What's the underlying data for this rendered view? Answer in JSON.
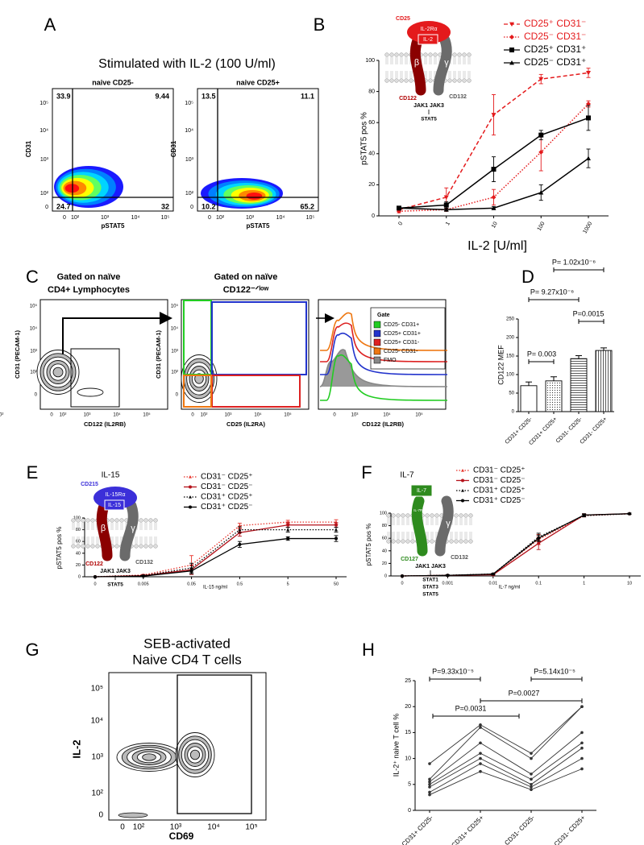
{
  "panel_labels": [
    "A",
    "B",
    "C",
    "D",
    "E",
    "F",
    "G",
    "H"
  ],
  "flow": {
    "A": {
      "title": "Stimulated with IL-2 (100 U/ml)",
      "x_label": "pSTAT5",
      "y_label": "CD31",
      "ticks": [
        "0",
        "10²",
        "10³",
        "10⁴",
        "10⁵"
      ],
      "plots": [
        {
          "title": "naive CD25-",
          "quadrants": [
            33.9,
            9.44,
            24.7,
            32
          ]
        },
        {
          "title": "naive CD25+",
          "quadrants": [
            13.5,
            11.1,
            10.2,
            65.2
          ]
        }
      ]
    },
    "C": {
      "titles": [
        [
          "Gated on naïve",
          "CD4+ Lymphocytes"
        ],
        [
          "Gated on naïve",
          "CD122⁻ᐟˡᵒʷ"
        ]
      ],
      "y_label": "CD31 (PECAM-1)",
      "x_labels": [
        "CD122 (IL2RB)",
        "CD25 (IL2RA)",
        "CD122 (IL2RB)"
      ],
      "ticks": [
        "0",
        "10²",
        "10³",
        "10⁴",
        "10⁵"
      ],
      "legend": {
        "title": "Gate",
        "entries": [
          {
            "name": "CD25- CD31+",
            "color": "#22cc22"
          },
          {
            "name": "CD25+ CD31+",
            "color": "#2233cc"
          },
          {
            "name": "CD25+ CD31-",
            "color": "#dd2222"
          },
          {
            "name": "CD25- CD31-",
            "color": "#ee7711"
          },
          {
            "name": "FMO",
            "color": "#888888"
          }
        ]
      }
    },
    "G": {
      "title": [
        "SEB-activated",
        "Naive CD4 T cells"
      ],
      "y_label": "IL-2",
      "x_label": "CD69",
      "ticks": [
        "0",
        "10²",
        "10³",
        "10⁴",
        "10⁵"
      ]
    }
  },
  "diagrams": {
    "B": {
      "receptor": "CD25",
      "alpha": "IL-2Rα",
      "cytokine": "IL-2",
      "beta": "β",
      "gamma": "γ",
      "chain_name": "CD122",
      "gamma_name": "CD132",
      "jak": "JAK1 JAK3",
      "stats": [
        "STAT5"
      ]
    },
    "E": {
      "receptor": "CD215",
      "alpha": "IL-15Rα",
      "cytokine": "IL-15",
      "beta": "β",
      "gamma": "γ",
      "chain_name": "CD122",
      "gamma_name": "CD132",
      "jak": "JAK1 JAK3",
      "stats": [
        "STAT5"
      ]
    },
    "F": {
      "alpha": "IL-7Rα",
      "cytokine": "IL-7",
      "gamma": "γ",
      "chain_name": "CD127",
      "gamma_name": "CD132",
      "jak": "JAK1 JAK3",
      "stats": [
        "STAT1",
        "STAT3",
        "STAT5"
      ]
    }
  },
  "chart_data": [
    {
      "type": "line",
      "x_label": "IL-2 [U/ml]",
      "y_label": "pSTAT5 pos %",
      "categories": [
        "0",
        "1",
        "10",
        "100",
        "1000"
      ],
      "ylim": [
        0,
        100
      ],
      "yticks": [
        0,
        20,
        40,
        60,
        80,
        100
      ],
      "series": [
        {
          "name": "CD25⁺ CD31⁻",
          "color": "#e41a1c",
          "dash": "dashed",
          "marker": "triangle-down",
          "values": [
            4,
            12,
            65,
            88,
            92
          ],
          "errors": [
            1,
            6,
            13,
            3,
            3
          ]
        },
        {
          "name": "CD25⁻ CD31⁻",
          "color": "#e41a1c",
          "dash": "dotted",
          "marker": "diamond",
          "values": [
            3,
            4,
            12,
            41,
            72
          ],
          "errors": [
            1,
            1,
            5,
            12,
            2
          ]
        },
        {
          "name": "CD25⁺ CD31⁺",
          "color": "#000000",
          "dash": "solid",
          "marker": "square",
          "values": [
            5,
            7,
            30,
            52,
            63
          ],
          "errors": [
            1,
            2,
            8,
            3,
            8
          ]
        },
        {
          "name": "CD25⁻ CD31⁺",
          "color": "#000000",
          "dash": "solid",
          "marker": "triangle",
          "values": [
            5,
            4,
            5,
            15,
            37
          ],
          "errors": [
            1,
            1,
            1,
            5,
            6
          ]
        }
      ]
    },
    {
      "type": "bar",
      "y_label": "CD122 MEF",
      "categories": [
        "CD31+ CD25-",
        "CD31+ CD25+",
        "CD31- CD25-",
        "CD31- CD25+"
      ],
      "values": [
        70,
        83,
        143,
        165
      ],
      "errors": [
        10,
        11,
        8,
        7
      ],
      "color": "#000000",
      "hatch": [
        "none",
        "dots",
        "horizontal",
        "vertical"
      ],
      "ylim": [
        0,
        250
      ],
      "yticks": [
        0,
        50,
        100,
        150,
        200,
        250
      ],
      "annotations": [
        "P= 1.02x10⁻⁶",
        "P= 9.27x10⁻⁶",
        "P=0.0015",
        "P= 0.003"
      ]
    },
    {
      "type": "line",
      "title": "IL-15",
      "x_label": "IL-15 ng/ml",
      "y_label": "pSTAT5 pos %",
      "categories": [
        "0",
        "0.005",
        "0.05",
        "0.5",
        "5",
        "50"
      ],
      "ylim": [
        0,
        100
      ],
      "yticks": [
        0,
        20,
        40,
        60,
        80,
        100
      ],
      "series": [
        {
          "name": "CD31⁻ CD25⁺",
          "color": "#e8332a",
          "dash": "dotted",
          "marker": "triangle",
          "values": [
            0,
            3,
            20,
            87,
            93,
            93
          ],
          "errors": [
            0,
            1,
            16,
            4,
            3,
            4
          ]
        },
        {
          "name": "CD31⁻ CD25⁻",
          "color": "#b5121b",
          "dash": "solid",
          "marker": "circle",
          "values": [
            0,
            2,
            12,
            75,
            88,
            88
          ],
          "errors": [
            0,
            1,
            8,
            6,
            4,
            4
          ]
        },
        {
          "name": "CD31⁺ CD25⁺",
          "color": "#000000",
          "dash": "dotted",
          "marker": "triangle",
          "values": [
            0,
            2,
            15,
            80,
            80,
            80
          ],
          "errors": [
            0,
            1,
            8,
            5,
            4,
            4
          ]
        },
        {
          "name": "CD31⁺ CD25⁻",
          "color": "#000000",
          "dash": "solid",
          "marker": "circle",
          "values": [
            0,
            1,
            10,
            55,
            65,
            65
          ],
          "errors": [
            0,
            1,
            5,
            5,
            3,
            5
          ]
        }
      ]
    },
    {
      "type": "line",
      "title": "IL-7",
      "x_label": "IL-7 ng/ml",
      "y_label": "pSTAT5 pos %",
      "categories": [
        "0",
        "0.001",
        "0.01",
        "0.1",
        "1",
        "10"
      ],
      "ylim": [
        0,
        100
      ],
      "yticks": [
        0,
        20,
        40,
        60,
        80,
        100
      ],
      "series": [
        {
          "name": "CD31⁻ CD25⁺",
          "color": "#e8332a",
          "dash": "dotted",
          "marker": "triangle",
          "values": [
            0,
            1,
            3,
            58,
            96,
            99
          ],
          "errors": [
            0,
            1,
            1,
            8,
            2,
            1
          ]
        },
        {
          "name": "CD31⁻ CD25⁻",
          "color": "#b5121b",
          "dash": "solid",
          "marker": "circle",
          "values": [
            0,
            1,
            2,
            52,
            97,
            99
          ],
          "errors": [
            0,
            1,
            1,
            10,
            2,
            1
          ]
        },
        {
          "name": "CD31⁺ CD25⁺",
          "color": "#000000",
          "dash": "dotted",
          "marker": "triangle",
          "values": [
            0,
            1,
            3,
            62,
            96,
            99
          ],
          "errors": [
            0,
            1,
            1,
            6,
            2,
            1
          ]
        },
        {
          "name": "CD31⁺ CD25⁻",
          "color": "#000000",
          "dash": "solid",
          "marker": "circle",
          "values": [
            0,
            1,
            3,
            60,
            97,
            99
          ],
          "errors": [
            0,
            1,
            1,
            5,
            2,
            1
          ]
        }
      ]
    },
    {
      "type": "line",
      "y_label": "IL-2⁺ naive  T cell %",
      "categories": [
        "CD31+ CD25-",
        "CD31+ CD25+",
        "CD31- CD25-",
        "CD31- CD25+"
      ],
      "ylim": [
        0,
        25
      ],
      "yticks": [
        0,
        5,
        10,
        15,
        20,
        25
      ],
      "series": [
        {
          "color": "#333333",
          "dash": "solid",
          "marker": "circle",
          "values": [
            9,
            16.5,
            11,
            20
          ]
        },
        {
          "color": "#333333",
          "dash": "solid",
          "marker": "circle",
          "values": [
            6,
            16,
            10,
            20
          ]
        },
        {
          "color": "#333333",
          "dash": "solid",
          "marker": "circle",
          "values": [
            5.5,
            13,
            7,
            15
          ]
        },
        {
          "color": "#333333",
          "dash": "solid",
          "marker": "circle",
          "values": [
            5,
            11,
            6,
            13
          ]
        },
        {
          "color": "#333333",
          "dash": "solid",
          "marker": "circle",
          "values": [
            4.5,
            10,
            5,
            12
          ]
        },
        {
          "color": "#333333",
          "dash": "solid",
          "marker": "circle",
          "values": [
            3.5,
            9,
            4.5,
            10
          ]
        },
        {
          "color": "#333333",
          "dash": "solid",
          "marker": "circle",
          "values": [
            3,
            7.5,
            4,
            8
          ]
        }
      ],
      "annotations": [
        "P=9.33x10⁻⁵",
        "P=5.14x10⁻⁵",
        "P=0.0027",
        "P=0.0031"
      ]
    }
  ]
}
